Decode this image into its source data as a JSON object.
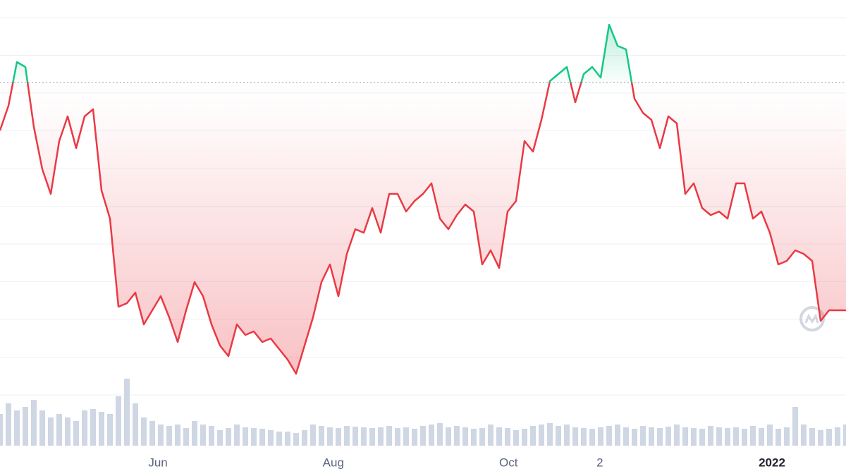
{
  "chart_data": {
    "type": "line",
    "baseline": 483,
    "up_color": "#16c784",
    "down_color": "#ea3943",
    "volume_color": "#cfd6e4",
    "xlim": [
      0,
      100
    ],
    "ylim": [
      0,
      600
    ],
    "vlim": [
      0,
      100
    ],
    "xticks": [
      {
        "value": 18.67,
        "label": "Jun"
      },
      {
        "value": 39.4,
        "label": "Aug"
      },
      {
        "value": 60.1,
        "label": "Oct"
      },
      {
        "value": 70.9,
        "label": "2"
      },
      {
        "value": 91.25,
        "label": "2022"
      }
    ],
    "series": [
      {
        "name": "Price",
        "values": [
          415,
          450,
          512,
          505,
          420,
          360,
          325,
          400,
          435,
          390,
          435,
          445,
          330,
          290,
          165,
          170,
          185,
          140,
          160,
          180,
          150,
          115,
          160,
          200,
          180,
          140,
          110,
          95,
          140,
          125,
          130,
          115,
          120,
          105,
          90,
          70,
          110,
          150,
          200,
          225,
          180,
          240,
          275,
          270,
          305,
          270,
          325,
          325,
          300,
          315,
          325,
          340,
          290,
          275,
          295,
          310,
          300,
          225,
          245,
          220,
          300,
          315,
          400,
          385,
          430,
          485,
          495,
          505,
          455,
          495,
          505,
          490,
          565,
          535,
          530,
          460,
          440,
          430,
          390,
          435,
          425,
          325,
          340,
          305,
          295,
          300,
          290,
          340,
          340,
          290,
          300,
          270,
          225,
          230,
          245,
          240,
          230,
          145,
          160,
          160,
          160
        ]
      },
      {
        "name": "Volume",
        "values": [
          45,
          60,
          50,
          55,
          65,
          50,
          40,
          45,
          40,
          35,
          50,
          52,
          48,
          45,
          70,
          95,
          60,
          40,
          35,
          30,
          28,
          30,
          25,
          35,
          30,
          28,
          22,
          25,
          30,
          26,
          25,
          24,
          22,
          20,
          20,
          18,
          22,
          30,
          28,
          26,
          25,
          28,
          27,
          26,
          25,
          26,
          28,
          25,
          26,
          24,
          28,
          30,
          32,
          26,
          28,
          26,
          24,
          25,
          30,
          26,
          25,
          22,
          24,
          28,
          30,
          32,
          28,
          30,
          26,
          25,
          24,
          26,
          28,
          30,
          26,
          24,
          28,
          26,
          25,
          27,
          30,
          26,
          25,
          24,
          28,
          26,
          25,
          26,
          24,
          28,
          25,
          30,
          24,
          26,
          55,
          30,
          25,
          22,
          24,
          26,
          30
        ]
      }
    ]
  }
}
